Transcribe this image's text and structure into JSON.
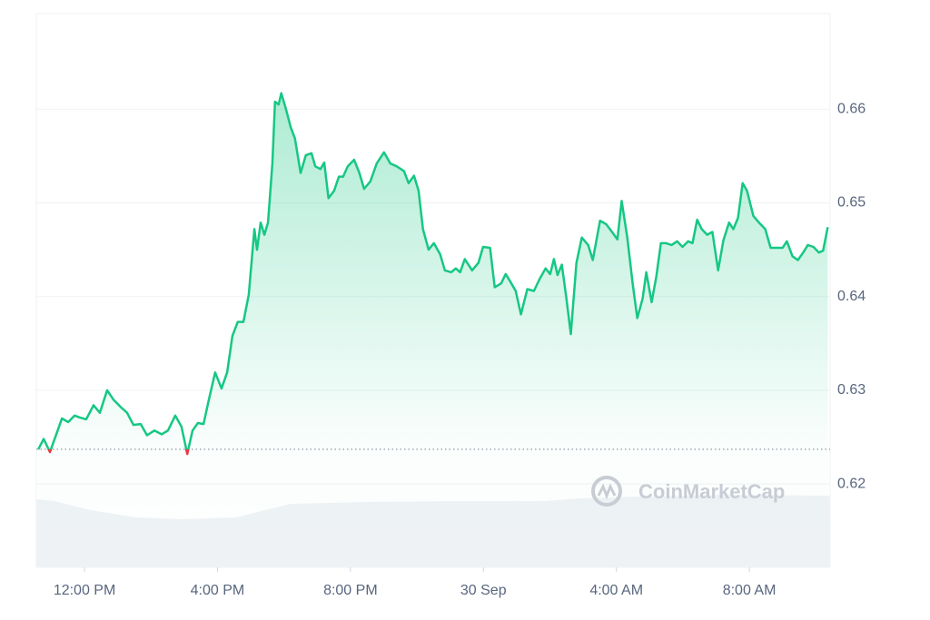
{
  "chart_data": {
    "type": "line",
    "x": [
      10.61,
      10.77,
      10.96,
      11.15,
      11.32,
      11.51,
      11.7,
      11.86,
      12.05,
      12.27,
      12.46,
      12.68,
      12.87,
      13.09,
      13.28,
      13.47,
      13.69,
      13.88,
      14.1,
      14.32,
      14.51,
      14.73,
      14.92,
      15.09,
      15.25,
      15.41,
      15.58,
      15.74,
      15.93,
      16.12,
      16.29,
      16.45,
      16.61,
      16.78,
      16.94,
      17.11,
      17.19,
      17.3,
      17.41,
      17.52,
      17.65,
      17.73,
      17.84,
      17.92,
      18.06,
      18.2,
      18.33,
      18.5,
      18.66,
      18.83,
      18.94,
      19.1,
      19.21,
      19.34,
      19.51,
      19.65,
      19.78,
      19.92,
      20.11,
      20.27,
      20.41,
      20.6,
      20.79,
      21.01,
      21.2,
      21.39,
      21.61,
      21.75,
      21.91,
      22.05,
      22.18,
      22.35,
      22.51,
      22.7,
      22.84,
      23.03,
      23.17,
      23.3,
      23.44,
      23.66,
      23.85,
      23.99,
      24.2,
      24.34,
      24.53,
      24.67,
      24.81,
      24.97,
      25.13,
      25.32,
      25.52,
      25.68,
      25.87,
      26.01,
      26.12,
      26.23,
      26.36,
      26.5,
      26.63,
      26.8,
      26.96,
      27.15,
      27.29,
      27.51,
      27.7,
      27.89,
      28.03,
      28.16,
      28.33,
      28.49,
      28.63,
      28.79,
      28.9,
      29.06,
      29.2,
      29.34,
      29.5,
      29.66,
      29.83,
      29.99,
      30.16,
      30.29,
      30.43,
      30.57,
      30.73,
      30.89,
      31.06,
      31.22,
      31.39,
      31.52,
      31.66,
      31.8,
      31.93,
      32.12,
      32.29,
      32.48,
      32.64,
      32.83,
      33.0,
      33.13,
      33.3,
      33.46,
      33.62,
      33.76,
      33.93,
      34.09,
      34.22,
      34.36
    ],
    "values": [
      0.6237,
      0.6248,
      0.6234,
      0.6253,
      0.627,
      0.6266,
      0.6273,
      0.6271,
      0.6269,
      0.6284,
      0.6276,
      0.63,
      0.629,
      0.6282,
      0.6276,
      0.6263,
      0.6264,
      0.6252,
      0.6257,
      0.6253,
      0.6257,
      0.6273,
      0.6261,
      0.6232,
      0.6257,
      0.6265,
      0.6264,
      0.629,
      0.6319,
      0.6302,
      0.6319,
      0.6358,
      0.6373,
      0.6373,
      0.6402,
      0.6472,
      0.645,
      0.6479,
      0.6466,
      0.6479,
      0.6542,
      0.6608,
      0.6605,
      0.6617,
      0.66,
      0.6581,
      0.6569,
      0.6532,
      0.6551,
      0.6553,
      0.6539,
      0.6536,
      0.6543,
      0.6505,
      0.6513,
      0.6528,
      0.6528,
      0.6539,
      0.6546,
      0.6532,
      0.6515,
      0.6523,
      0.6542,
      0.6554,
      0.6542,
      0.6539,
      0.6534,
      0.6521,
      0.6529,
      0.6513,
      0.6472,
      0.645,
      0.6457,
      0.6445,
      0.6428,
      0.6426,
      0.643,
      0.6426,
      0.644,
      0.6428,
      0.6436,
      0.6453,
      0.6452,
      0.641,
      0.6414,
      0.6424,
      0.6416,
      0.6406,
      0.6381,
      0.6408,
      0.6406,
      0.6418,
      0.643,
      0.6424,
      0.644,
      0.6423,
      0.6434,
      0.6397,
      0.636,
      0.6436,
      0.6463,
      0.6455,
      0.6439,
      0.6481,
      0.6477,
      0.6468,
      0.6461,
      0.6502,
      0.6463,
      0.6414,
      0.6377,
      0.6398,
      0.6426,
      0.6394,
      0.6421,
      0.6457,
      0.6457,
      0.6455,
      0.6459,
      0.6453,
      0.6459,
      0.6457,
      0.6482,
      0.6472,
      0.6466,
      0.6469,
      0.6428,
      0.646,
      0.6479,
      0.6472,
      0.6484,
      0.6521,
      0.6513,
      0.6486,
      0.6479,
      0.6472,
      0.6452,
      0.6452,
      0.6452,
      0.6459,
      0.6443,
      0.6439,
      0.6447,
      0.6455,
      0.6453,
      0.6447,
      0.6449,
      0.6474
    ],
    "baseline": 0.6237,
    "color": "#16c784",
    "down_color": "#ea3943",
    "xlim": [
      10.55,
      34.43
    ],
    "xticks": [
      {
        "value": 12,
        "label": "12:00 PM"
      },
      {
        "value": 16,
        "label": "4:00 PM"
      },
      {
        "value": 20,
        "label": "8:00 PM"
      },
      {
        "value": 24,
        "label": "30 Sep"
      },
      {
        "value": 28,
        "label": "4:00 AM"
      },
      {
        "value": 32,
        "label": "8:00 AM"
      }
    ],
    "ylim": [
      0.6111,
      0.6702
    ],
    "yticks": [
      0.62,
      0.63,
      0.64,
      0.65,
      0.66
    ],
    "grid": true,
    "watermark": "CoinMarketCap"
  }
}
